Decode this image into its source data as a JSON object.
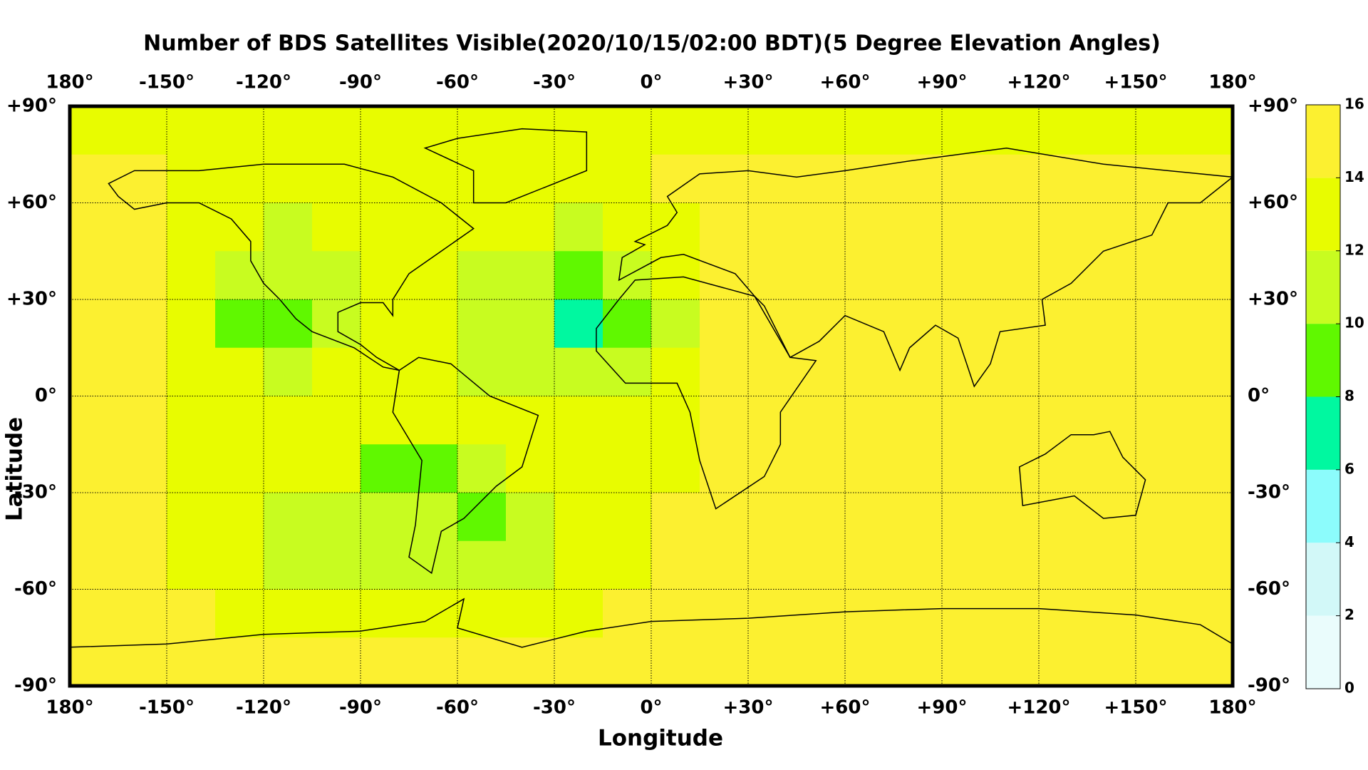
{
  "chart_data": {
    "type": "heatmap",
    "title": "Number of BDS Satellites Visible(2020/10/15/02:00 BDT)(5 Degree Elevation Angles)",
    "x_label": "Longitude",
    "y_label": "Latitude",
    "xlim": [
      -180,
      180
    ],
    "ylim": [
      -90,
      90
    ],
    "xticks": [
      {
        "value": -180,
        "label": "180°"
      },
      {
        "value": -150,
        "label": "-150°"
      },
      {
        "value": -120,
        "label": "-120°"
      },
      {
        "value": -90,
        "label": "-90°"
      },
      {
        "value": -60,
        "label": "-60°"
      },
      {
        "value": -30,
        "label": "-30°"
      },
      {
        "value": 0,
        "label": "0°"
      },
      {
        "value": 30,
        "label": "+30°"
      },
      {
        "value": 60,
        "label": "+60°"
      },
      {
        "value": 90,
        "label": "+90°"
      },
      {
        "value": 120,
        "label": "+120°"
      },
      {
        "value": 150,
        "label": "+150°"
      },
      {
        "value": 180,
        "label": "180°"
      }
    ],
    "yticks": [
      {
        "value": 90,
        "label": "+90°"
      },
      {
        "value": 60,
        "label": "+60°"
      },
      {
        "value": 30,
        "label": "+30°"
      },
      {
        "value": 0,
        "label": "0°"
      },
      {
        "value": -30,
        "label": "-30°"
      },
      {
        "value": -60,
        "label": "-60°"
      },
      {
        "value": -90,
        "label": "-90°"
      }
    ],
    "grid": true,
    "x_bins": [
      -180,
      -165,
      -150,
      -135,
      -120,
      -105,
      -90,
      -75,
      -60,
      -45,
      -30,
      -15,
      0,
      15,
      30,
      45,
      60,
      75,
      90,
      105,
      120,
      135,
      150,
      165,
      180
    ],
    "y_bins": [
      90,
      75,
      60,
      45,
      30,
      15,
      0,
      -15,
      -30,
      -45,
      -60,
      -75,
      -90
    ],
    "z": [
      [
        13,
        13,
        13,
        13,
        13,
        12,
        12,
        12,
        12,
        12,
        13,
        13,
        13,
        13,
        13,
        13,
        13,
        13,
        13,
        13,
        13,
        13,
        13,
        13
      ],
      [
        15,
        15,
        13,
        13,
        13,
        13,
        12,
        12,
        12,
        13,
        13,
        13,
        15,
        15,
        15,
        15,
        15,
        15,
        15,
        15,
        15,
        15,
        15,
        15
      ],
      [
        15,
        15,
        13,
        12,
        11,
        12,
        12,
        12,
        12,
        12,
        11,
        12,
        13,
        15,
        15,
        15,
        15,
        15,
        15,
        15,
        15,
        15,
        15,
        15
      ],
      [
        15,
        14,
        13,
        11,
        10,
        11,
        12,
        12,
        11,
        11,
        9,
        10,
        12,
        14,
        15,
        15,
        15,
        15,
        15,
        15,
        15,
        15,
        15,
        15
      ],
      [
        15,
        14,
        12,
        9,
        8,
        11,
        12,
        12,
        11,
        10,
        7,
        9,
        11,
        14,
        15,
        15,
        15,
        15,
        15,
        15,
        15,
        15,
        15,
        15
      ],
      [
        15,
        14,
        13,
        12,
        11,
        12,
        12,
        12,
        11,
        11,
        10,
        11,
        12,
        14,
        15,
        15,
        15,
        15,
        15,
        15,
        15,
        15,
        15,
        15
      ],
      [
        15,
        15,
        13,
        12,
        12,
        12,
        12,
        12,
        12,
        12,
        12,
        12,
        13,
        15,
        15,
        15,
        15,
        15,
        15,
        15,
        15,
        15,
        15,
        15
      ],
      [
        15,
        15,
        13,
        12,
        12,
        12,
        9,
        9,
        11,
        12,
        12,
        12,
        13,
        15,
        15,
        15,
        15,
        15,
        15,
        15,
        15,
        15,
        15,
        15
      ],
      [
        15,
        15,
        13,
        12,
        11,
        11,
        11,
        11,
        9,
        11,
        12,
        12,
        14,
        15,
        15,
        15,
        15,
        15,
        15,
        15,
        15,
        15,
        15,
        15
      ],
      [
        15,
        15,
        13,
        12,
        11,
        11,
        11,
        10,
        11,
        11,
        12,
        13,
        15,
        15,
        15,
        15,
        15,
        15,
        15,
        15,
        15,
        15,
        15,
        15
      ],
      [
        15,
        15,
        14,
        13,
        12,
        12,
        12,
        12,
        12,
        12,
        13,
        14,
        15,
        15,
        15,
        15,
        15,
        15,
        15,
        15,
        15,
        15,
        15,
        15
      ],
      [
        15,
        15,
        15,
        15,
        15,
        15,
        15,
        15,
        15,
        15,
        15,
        15,
        15,
        15,
        15,
        15,
        15,
        15,
        15,
        15,
        15,
        15,
        15,
        15
      ]
    ],
    "colorbar": {
      "ticks": [
        0,
        2,
        4,
        6,
        8,
        10,
        12,
        14,
        16
      ],
      "colors": [
        "#eafcfc",
        "#d2f8f8",
        "#8cfcfc",
        "#00f8a0",
        "#60f800",
        "#c8fc20",
        "#e8fc00",
        "#fcf030"
      ]
    }
  }
}
